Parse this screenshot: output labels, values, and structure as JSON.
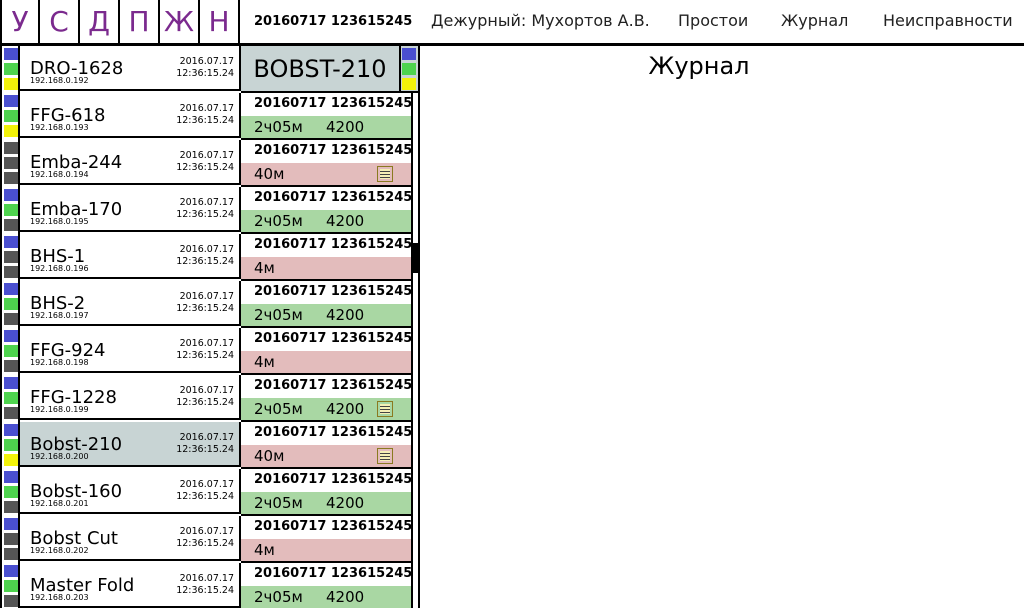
{
  "colors": {
    "accent": "#7b2a8e",
    "blue": "#4a4fd0",
    "green": "#4ed34e",
    "yellow": "#f2f20a",
    "gray": "#555555",
    "row_green": "#a9d7a3",
    "row_pink": "#e3bcbc",
    "selected": "#c8d4d4"
  },
  "topbar": {
    "letters": [
      "У",
      "С",
      "Д",
      "П",
      "Ж",
      "Н"
    ],
    "datetime": "20160717 123615245",
    "duty": "Дежурный: Мухортов А.В.",
    "downtime": "Простои",
    "journal": "Журнал",
    "faults": "Неисправности"
  },
  "selected": {
    "title": "BOBST-210",
    "status": [
      "blue",
      "green",
      "yellow"
    ]
  },
  "journal": {
    "title": "Журнал"
  },
  "machines": [
    {
      "name": "DRO-1628",
      "ip": "192.168.0.192",
      "date": "2016.07.17",
      "time": "12:36:15.24",
      "status": [
        "blue",
        "green",
        "yellow"
      ],
      "selected": false,
      "rec_datetime": null,
      "rec_duration": null,
      "rec_value": null,
      "rec_color": null,
      "rec_note": false
    },
    {
      "name": "FFG-618",
      "ip": "192.168.0.193",
      "date": "2016.07.17",
      "time": "12:36:15.24",
      "status": [
        "blue",
        "green",
        "yellow"
      ],
      "selected": false,
      "rec_datetime": "20160717 123615245",
      "rec_duration": "2ч05м",
      "rec_value": "4200",
      "rec_color": "green",
      "rec_note": false
    },
    {
      "name": "Emba-244",
      "ip": "192.168.0.194",
      "date": "2016.07.17",
      "time": "12:36:15.24",
      "status": [
        "gray",
        "gray",
        "gray"
      ],
      "selected": false,
      "rec_datetime": "20160717 123615245",
      "rec_duration": "40м",
      "rec_value": "",
      "rec_color": "pink",
      "rec_note": true
    },
    {
      "name": "Emba-170",
      "ip": "192.168.0.195",
      "date": "2016.07.17",
      "time": "12:36:15.24",
      "status": [
        "blue",
        "green",
        "gray"
      ],
      "selected": false,
      "rec_datetime": "20160717 123615245",
      "rec_duration": "2ч05м",
      "rec_value": "4200",
      "rec_color": "green",
      "rec_note": false
    },
    {
      "name": "BHS-1",
      "ip": "192.168.0.196",
      "date": "2016.07.17",
      "time": "12:36:15.24",
      "status": [
        "blue",
        "gray",
        "gray"
      ],
      "selected": false,
      "rec_datetime": "20160717 123615245",
      "rec_duration": "4м",
      "rec_value": "",
      "rec_color": "pink",
      "rec_note": false
    },
    {
      "name": "BHS-2",
      "ip": "192.168.0.197",
      "date": "2016.07.17",
      "time": "12:36:15.24",
      "status": [
        "blue",
        "green",
        "gray"
      ],
      "selected": false,
      "rec_datetime": "20160717 123615245",
      "rec_duration": "2ч05м",
      "rec_value": "4200",
      "rec_color": "green",
      "rec_note": false
    },
    {
      "name": "FFG-924",
      "ip": "192.168.0.198",
      "date": "2016.07.17",
      "time": "12:36:15.24",
      "status": [
        "blue",
        "green",
        "gray"
      ],
      "selected": false,
      "rec_datetime": "20160717 123615245",
      "rec_duration": "4м",
      "rec_value": "",
      "rec_color": "pink",
      "rec_note": false
    },
    {
      "name": "FFG-1228",
      "ip": "192.168.0.199",
      "date": "2016.07.17",
      "time": "12:36:15.24",
      "status": [
        "blue",
        "green",
        "gray"
      ],
      "selected": false,
      "rec_datetime": "20160717 123615245",
      "rec_duration": "2ч05м",
      "rec_value": "4200",
      "rec_color": "green",
      "rec_note": true
    },
    {
      "name": "Bobst-210",
      "ip": "192.168.0.200",
      "date": "2016.07.17",
      "time": "12:36:15.24",
      "status": [
        "blue",
        "green",
        "yellow"
      ],
      "selected": true,
      "rec_datetime": "20160717 123615245",
      "rec_duration": "40м",
      "rec_value": "",
      "rec_color": "pink",
      "rec_note": true
    },
    {
      "name": "Bobst-160",
      "ip": "192.168.0.201",
      "date": "2016.07.17",
      "time": "12:36:15.24",
      "status": [
        "blue",
        "green",
        "gray"
      ],
      "selected": false,
      "rec_datetime": "20160717 123615245",
      "rec_duration": "2ч05м",
      "rec_value": "4200",
      "rec_color": "green",
      "rec_note": false
    },
    {
      "name": "Bobst Cut",
      "ip": "192.168.0.202",
      "date": "2016.07.17",
      "time": "12:36:15.24",
      "status": [
        "blue",
        "gray",
        "gray"
      ],
      "selected": false,
      "rec_datetime": "20160717 123615245",
      "rec_duration": "4м",
      "rec_value": "",
      "rec_color": "pink",
      "rec_note": false
    },
    {
      "name": "Master Fold",
      "ip": "192.168.0.203",
      "date": "2016.07.17",
      "time": "12:36:15.24",
      "status": [
        "blue",
        "green",
        "gray"
      ],
      "selected": false,
      "rec_datetime": "20160717 123615245",
      "rec_duration": "2ч05м",
      "rec_value": "4200",
      "rec_color": "green",
      "rec_note": false
    }
  ]
}
